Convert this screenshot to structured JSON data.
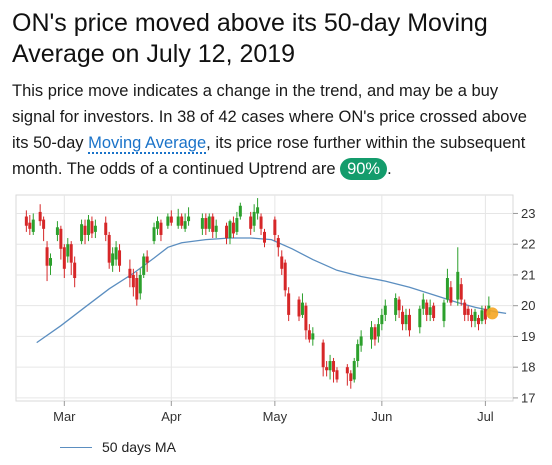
{
  "headline": "ON's price moved above its 50-day Moving Average on July 12, 2019",
  "summary": {
    "text_before_link": "This price move indicates a change in the trend, and may be a buy signal for investors. In 38 of 42 cases where ON's price crossed above its 50-day ",
    "link_label": "Moving Average",
    "text_after_link": ", its price rose further within the subsequent month. The odds of a continued Uptrend are ",
    "odds_badge": "90%",
    "text_end": "."
  },
  "colors": {
    "up": "#2ca02c",
    "down": "#d62728",
    "ma_line": "#5b8ec0",
    "marker": "#f5a623",
    "badge": "#149c6c",
    "link": "#1a73c9"
  },
  "legend": {
    "label": "50 days MA"
  },
  "chart_data": {
    "type": "candlestick",
    "x_axis": {
      "ticks": [
        "Mar",
        "Apr",
        "May",
        "Jun",
        "Jul"
      ],
      "tick_days": [
        6,
        37,
        67,
        98,
        128
      ]
    },
    "y_axis": {
      "ticks": [
        17,
        18,
        19,
        20,
        21,
        22,
        23
      ],
      "range": [
        16.9,
        23.6
      ],
      "position": "right"
    },
    "grid": "both",
    "legend_position": "bottom-left",
    "ma_series": {
      "name": "50 days MA",
      "points": [
        [
          -2,
          18.8
        ],
        [
          5,
          19.35
        ],
        [
          12,
          19.95
        ],
        [
          19,
          20.55
        ],
        [
          26,
          21.05
        ],
        [
          32,
          21.55
        ],
        [
          36,
          21.9
        ],
        [
          40,
          22.05
        ],
        [
          47,
          22.15
        ],
        [
          54,
          22.2
        ],
        [
          60,
          22.2
        ],
        [
          66,
          22.15
        ],
        [
          72,
          21.85
        ],
        [
          78,
          21.5
        ],
        [
          85,
          21.15
        ],
        [
          92,
          20.95
        ],
        [
          99,
          20.8
        ],
        [
          106,
          20.6
        ],
        [
          113,
          20.35
        ],
        [
          120,
          20.1
        ],
        [
          125,
          19.95
        ],
        [
          131,
          19.8
        ],
        [
          134,
          19.75
        ]
      ]
    },
    "candles": [
      {
        "day": -5,
        "o": 22.9,
        "c": 22.6,
        "h": 23.1,
        "l": 22.4
      },
      {
        "day": -4,
        "o": 22.7,
        "c": 22.5,
        "h": 22.95,
        "l": 22.3
      },
      {
        "day": -3,
        "o": 22.4,
        "c": 22.8,
        "h": 23.0,
        "l": 22.3
      },
      {
        "day": -1,
        "o": 23.05,
        "c": 22.75,
        "h": 23.3,
        "l": 22.6
      },
      {
        "day": 0,
        "o": 22.8,
        "c": 22.5,
        "h": 22.9,
        "l": 22.1
      },
      {
        "day": 1,
        "o": 21.9,
        "c": 21.3,
        "h": 22.1,
        "l": 20.8
      },
      {
        "day": 2,
        "o": 21.3,
        "c": 21.55,
        "h": 21.7,
        "l": 21.0
      },
      {
        "day": 4,
        "o": 22.3,
        "c": 22.55,
        "h": 22.75,
        "l": 22.1
      },
      {
        "day": 5,
        "o": 22.5,
        "c": 21.85,
        "h": 22.6,
        "l": 21.5
      },
      {
        "day": 6,
        "o": 21.9,
        "c": 21.2,
        "h": 22.0,
        "l": 20.9
      },
      {
        "day": 7,
        "o": 21.6,
        "c": 22.0,
        "h": 22.2,
        "l": 21.4
      },
      {
        "day": 8,
        "o": 22.0,
        "c": 21.4,
        "h": 22.1,
        "l": 21.0
      },
      {
        "day": 9,
        "o": 21.4,
        "c": 20.9,
        "h": 21.6,
        "l": 20.6
      },
      {
        "day": 11,
        "o": 22.1,
        "c": 22.65,
        "h": 22.8,
        "l": 22.0
      },
      {
        "day": 12,
        "o": 22.6,
        "c": 22.3,
        "h": 22.8,
        "l": 22.0
      },
      {
        "day": 13,
        "o": 22.3,
        "c": 22.8,
        "h": 22.95,
        "l": 22.1
      },
      {
        "day": 14,
        "o": 22.75,
        "c": 22.35,
        "h": 22.9,
        "l": 22.2
      },
      {
        "day": 15,
        "o": 22.4,
        "c": 22.6,
        "h": 22.8,
        "l": 22.2
      },
      {
        "day": 18,
        "o": 22.7,
        "c": 22.3,
        "h": 22.9,
        "l": 22.1
      },
      {
        "day": 19,
        "o": 22.3,
        "c": 21.4,
        "h": 22.4,
        "l": 21.2
      },
      {
        "day": 20,
        "o": 21.3,
        "c": 21.7,
        "h": 21.9,
        "l": 21.1
      },
      {
        "day": 21,
        "o": 21.5,
        "c": 21.9,
        "h": 22.1,
        "l": 21.3
      },
      {
        "day": 22,
        "o": 21.8,
        "c": 21.3,
        "h": 22.0,
        "l": 21.1
      },
      {
        "day": 25,
        "o": 21.2,
        "c": 20.9,
        "h": 21.5,
        "l": 20.6
      },
      {
        "day": 26,
        "o": 21.0,
        "c": 20.6,
        "h": 21.2,
        "l": 20.3
      },
      {
        "day": 27,
        "o": 20.9,
        "c": 20.2,
        "h": 21.1,
        "l": 20.0
      },
      {
        "day": 28,
        "o": 20.4,
        "c": 21.0,
        "h": 21.2,
        "l": 20.2
      },
      {
        "day": 29,
        "o": 21.0,
        "c": 21.6,
        "h": 21.7,
        "l": 20.9
      },
      {
        "day": 30,
        "o": 21.6,
        "c": 21.4,
        "h": 21.8,
        "l": 21.1
      },
      {
        "day": 32,
        "o": 22.1,
        "c": 22.55,
        "h": 22.7,
        "l": 22.0
      },
      {
        "day": 33,
        "o": 22.5,
        "c": 22.75,
        "h": 22.9,
        "l": 22.3
      },
      {
        "day": 34,
        "o": 22.7,
        "c": 22.3,
        "h": 22.8,
        "l": 22.1
      },
      {
        "day": 36,
        "o": 22.6,
        "c": 22.9,
        "h": 23.0,
        "l": 22.5
      },
      {
        "day": 37,
        "o": 22.9,
        "c": 22.7,
        "h": 23.1,
        "l": 22.6
      },
      {
        "day": 39,
        "o": 22.6,
        "c": 22.9,
        "h": 23.15,
        "l": 22.5
      },
      {
        "day": 40,
        "o": 22.9,
        "c": 22.6,
        "h": 23.0,
        "l": 22.5
      },
      {
        "day": 41,
        "o": 22.5,
        "c": 22.75,
        "h": 23.0,
        "l": 22.4
      },
      {
        "day": 42,
        "o": 22.75,
        "c": 22.9,
        "h": 23.2,
        "l": 22.6
      },
      {
        "day": 46,
        "o": 22.5,
        "c": 22.85,
        "h": 23.0,
        "l": 22.3
      },
      {
        "day": 47,
        "o": 22.85,
        "c": 22.5,
        "h": 23.0,
        "l": 22.3
      },
      {
        "day": 48,
        "o": 22.5,
        "c": 22.9,
        "h": 23.0,
        "l": 22.4
      },
      {
        "day": 49,
        "o": 22.9,
        "c": 22.4,
        "h": 23.0,
        "l": 22.2
      },
      {
        "day": 50,
        "o": 22.4,
        "c": 22.6,
        "h": 22.8,
        "l": 22.2
      },
      {
        "day": 53,
        "o": 22.6,
        "c": 22.2,
        "h": 22.7,
        "l": 22.0
      },
      {
        "day": 54,
        "o": 22.2,
        "c": 22.75,
        "h": 22.8,
        "l": 22.0
      },
      {
        "day": 55,
        "o": 22.7,
        "c": 22.35,
        "h": 22.9,
        "l": 22.2
      },
      {
        "day": 56,
        "o": 22.4,
        "c": 22.85,
        "h": 23.05,
        "l": 22.3
      },
      {
        "day": 57,
        "o": 22.9,
        "c": 23.25,
        "h": 23.35,
        "l": 22.8
      },
      {
        "day": 60,
        "o": 22.9,
        "c": 22.5,
        "h": 23.05,
        "l": 22.3
      },
      {
        "day": 61,
        "o": 22.6,
        "c": 23.05,
        "h": 23.3,
        "l": 22.4
      },
      {
        "day": 62,
        "o": 23.0,
        "c": 23.2,
        "h": 23.5,
        "l": 22.8
      },
      {
        "day": 63,
        "o": 22.9,
        "c": 22.5,
        "h": 23.0,
        "l": 22.3
      },
      {
        "day": 64,
        "o": 22.4,
        "c": 22.05,
        "h": 22.5,
        "l": 21.9
      },
      {
        "day": 67,
        "o": 22.8,
        "c": 22.3,
        "h": 22.9,
        "l": 22.1
      },
      {
        "day": 68,
        "o": 22.2,
        "c": 21.9,
        "h": 22.3,
        "l": 21.6
      },
      {
        "day": 69,
        "o": 21.6,
        "c": 21.2,
        "h": 21.8,
        "l": 21.0
      },
      {
        "day": 70,
        "o": 21.4,
        "c": 20.5,
        "h": 21.5,
        "l": 20.3
      },
      {
        "day": 71,
        "o": 20.4,
        "c": 19.7,
        "h": 20.6,
        "l": 19.5
      },
      {
        "day": 74,
        "o": 20.2,
        "c": 19.65,
        "h": 20.3,
        "l": 19.5
      },
      {
        "day": 75,
        "o": 19.7,
        "c": 20.1,
        "h": 20.4,
        "l": 19.6
      },
      {
        "day": 76,
        "o": 20.0,
        "c": 19.2,
        "h": 20.1,
        "l": 18.9
      },
      {
        "day": 77,
        "o": 19.2,
        "c": 18.9,
        "h": 19.4,
        "l": 18.8
      },
      {
        "day": 78,
        "o": 18.9,
        "c": 19.1,
        "h": 19.3,
        "l": 18.7
      },
      {
        "day": 81,
        "o": 18.8,
        "c": 18.0,
        "h": 18.9,
        "l": 17.7
      },
      {
        "day": 82,
        "o": 18.0,
        "c": 17.9,
        "h": 18.2,
        "l": 17.7
      },
      {
        "day": 83,
        "o": 17.9,
        "c": 18.2,
        "h": 18.4,
        "l": 17.6
      },
      {
        "day": 84,
        "o": 18.2,
        "c": 17.85,
        "h": 18.3,
        "l": 17.5
      },
      {
        "day": 85,
        "o": 17.9,
        "c": 17.6,
        "h": 18.0,
        "l": 17.5
      },
      {
        "day": 88,
        "o": 18.0,
        "c": 17.8,
        "h": 18.1,
        "l": 17.4
      },
      {
        "day": 89,
        "o": 17.8,
        "c": 17.55,
        "h": 17.9,
        "l": 17.3
      },
      {
        "day": 90,
        "o": 17.6,
        "c": 18.2,
        "h": 18.3,
        "l": 17.5
      },
      {
        "day": 91,
        "o": 18.2,
        "c": 18.75,
        "h": 18.9,
        "l": 18.0
      },
      {
        "day": 92,
        "o": 18.7,
        "c": 19.0,
        "h": 19.2,
        "l": 18.5
      },
      {
        "day": 95,
        "o": 18.9,
        "c": 19.3,
        "h": 19.5,
        "l": 18.6
      },
      {
        "day": 96,
        "o": 19.3,
        "c": 18.9,
        "h": 19.4,
        "l": 18.7
      },
      {
        "day": 97,
        "o": 19.0,
        "c": 19.4,
        "h": 19.6,
        "l": 18.8
      },
      {
        "day": 98,
        "o": 19.4,
        "c": 19.7,
        "h": 19.9,
        "l": 19.2
      },
      {
        "day": 99,
        "o": 19.7,
        "c": 20.0,
        "h": 20.2,
        "l": 19.5
      },
      {
        "day": 102,
        "o": 19.7,
        "c": 20.25,
        "h": 20.4,
        "l": 19.5
      },
      {
        "day": 103,
        "o": 20.2,
        "c": 19.85,
        "h": 20.3,
        "l": 19.6
      },
      {
        "day": 104,
        "o": 19.8,
        "c": 19.4,
        "h": 20.0,
        "l": 19.2
      },
      {
        "day": 105,
        "o": 19.4,
        "c": 19.7,
        "h": 19.9,
        "l": 19.2
      },
      {
        "day": 106,
        "o": 19.7,
        "c": 19.2,
        "h": 19.9,
        "l": 19.0
      },
      {
        "day": 109,
        "o": 19.3,
        "c": 19.9,
        "h": 20.0,
        "l": 19.1
      },
      {
        "day": 110,
        "o": 19.9,
        "c": 20.2,
        "h": 20.4,
        "l": 19.7
      },
      {
        "day": 111,
        "o": 20.1,
        "c": 19.7,
        "h": 20.2,
        "l": 19.5
      },
      {
        "day": 112,
        "o": 19.7,
        "c": 19.95,
        "h": 20.2,
        "l": 19.5
      },
      {
        "day": 113,
        "o": 20.0,
        "c": 19.6,
        "h": 20.1,
        "l": 19.5
      },
      {
        "day": 116,
        "o": 19.5,
        "c": 20.1,
        "h": 20.2,
        "l": 19.3
      },
      {
        "day": 117,
        "o": 20.2,
        "c": 20.9,
        "h": 21.2,
        "l": 20.1
      },
      {
        "day": 118,
        "o": 20.6,
        "c": 20.1,
        "h": 20.8,
        "l": 20.0
      },
      {
        "day": 120,
        "o": 20.2,
        "c": 21.1,
        "h": 21.9,
        "l": 20.0
      },
      {
        "day": 121,
        "o": 20.7,
        "c": 20.2,
        "h": 20.9,
        "l": 20.0
      },
      {
        "day": 122,
        "o": 20.1,
        "c": 19.7,
        "h": 20.2,
        "l": 19.5
      },
      {
        "day": 123,
        "o": 19.9,
        "c": 19.7,
        "h": 20.0,
        "l": 19.5
      },
      {
        "day": 124,
        "o": 19.7,
        "c": 19.5,
        "h": 19.9,
        "l": 19.3
      },
      {
        "day": 125,
        "o": 19.5,
        "c": 19.8,
        "h": 19.9,
        "l": 19.3
      },
      {
        "day": 126,
        "o": 19.6,
        "c": 19.4,
        "h": 19.7,
        "l": 19.2
      },
      {
        "day": 127,
        "o": 19.5,
        "c": 19.85,
        "h": 20.0,
        "l": 19.4
      },
      {
        "day": 128,
        "o": 19.9,
        "c": 19.55,
        "h": 20.0,
        "l": 19.4
      },
      {
        "day": 129,
        "o": 19.7,
        "c": 20.0,
        "h": 20.3,
        "l": 19.6
      }
    ],
    "highlight_point": {
      "day": 130,
      "value": 19.75
    }
  }
}
